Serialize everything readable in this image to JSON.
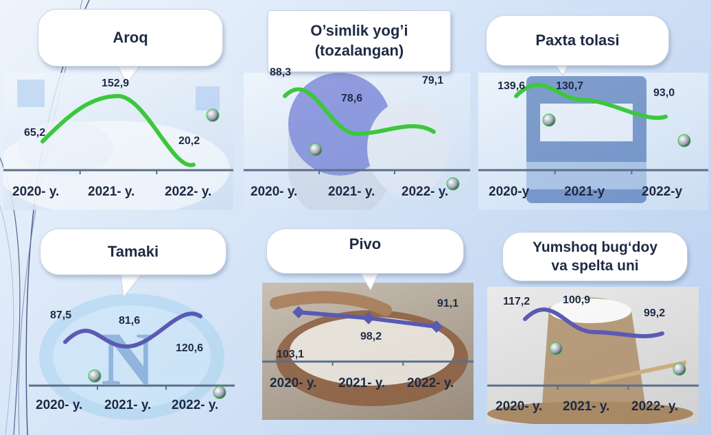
{
  "colors": {
    "green": "#3cc83c",
    "purple": "#5a5ab4",
    "axis": "#5a6e88",
    "text": "#1e2a44"
  },
  "chart_data": [
    {
      "type": "line",
      "title": "Aroq",
      "categories": [
        "2020- y.",
        "2021- y.",
        "2022- y."
      ],
      "values": [
        65.2,
        152.9,
        20.2
      ],
      "value_labels": [
        "65,2",
        "152,9",
        "20,2"
      ],
      "line_color": "green",
      "smooth": true
    },
    {
      "type": "line",
      "title": "O’simlik yog’i\n(tozalangan)",
      "categories": [
        "2020- y.",
        "2021- y.",
        "2022- y."
      ],
      "values": [
        88.3,
        78.6,
        79.1
      ],
      "value_labels": [
        "88,3",
        "78,6",
        "79,1"
      ],
      "line_color": "green",
      "smooth": true
    },
    {
      "type": "line",
      "title": "Paxta tolasi",
      "categories": [
        "2020-y",
        "2021-y",
        "2022-y"
      ],
      "values": [
        139.6,
        130.7,
        93.0
      ],
      "value_labels": [
        "139,6",
        "130,7",
        "93,0"
      ],
      "line_color": "green",
      "smooth": true
    },
    {
      "type": "line",
      "title": "Tamaki",
      "categories": [
        "2020- y.",
        "2021- y.",
        "2022- y."
      ],
      "values": [
        87.5,
        81.6,
        120.6
      ],
      "value_labels": [
        "87,5",
        "81,6",
        "120,6"
      ],
      "line_color": "purple",
      "smooth": true
    },
    {
      "type": "line",
      "title": "Pivo",
      "categories": [
        "2020- y.",
        "2021- y.",
        "2022- y."
      ],
      "values": [
        103.1,
        98.2,
        91.1
      ],
      "value_labels": [
        "103,1",
        "98,2",
        "91,1"
      ],
      "line_color": "purple",
      "smooth": false,
      "markers": "diamond"
    },
    {
      "type": "line",
      "title": "Yumshoq bug‘doy\nva spelta uni",
      "categories": [
        "2020- y.",
        "2021- y.",
        "2022- y."
      ],
      "values": [
        117.2,
        100.9,
        99.2
      ],
      "value_labels": [
        "117,2",
        "100,9",
        "99,2"
      ],
      "line_color": "purple",
      "smooth": true
    }
  ]
}
